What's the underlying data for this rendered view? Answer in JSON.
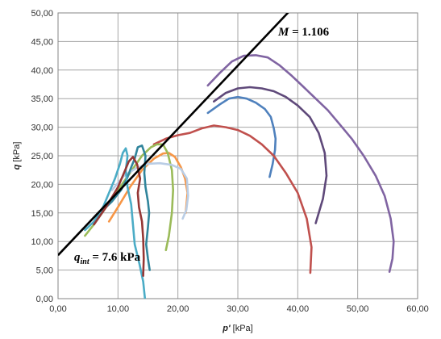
{
  "chart_data": {
    "type": "line",
    "xlabel_main": "p'",
    "xlabel_unit": " [kPa]",
    "ylabel_main": "q",
    "ylabel_unit": " [kPa]",
    "xlim": [
      0,
      60
    ],
    "ylim": [
      0,
      50
    ],
    "x_ticks": [
      "0,00",
      "10,00",
      "20,00",
      "30,00",
      "40,00",
      "50,00",
      "60,00"
    ],
    "y_ticks": [
      "0,00",
      "5,00",
      "10,00",
      "15,00",
      "20,00",
      "25,00",
      "30,00",
      "35,00",
      "40,00",
      "45,00",
      "50,00"
    ],
    "grid": true,
    "annotations": {
      "m_prefix": "M",
      "m_value": " = 1.106",
      "q_prefix": "q",
      "q_sub": "int",
      "q_value": " = 7.6 kPa"
    },
    "reference_line": {
      "intercept": 7.6,
      "slope": 1.106,
      "color": "#000000"
    },
    "series": [
      {
        "color": "#8064a2",
        "points": [
          [
            25,
            37.3
          ],
          [
            27,
            39.5
          ],
          [
            29,
            41.5
          ],
          [
            31,
            42.5
          ],
          [
            33,
            42.6
          ],
          [
            35,
            42.2
          ],
          [
            37,
            40.8
          ],
          [
            39,
            39
          ],
          [
            41,
            37
          ],
          [
            43,
            35
          ],
          [
            45,
            33
          ],
          [
            47,
            30.5
          ],
          [
            49,
            28
          ],
          [
            51,
            25
          ],
          [
            53,
            21.5
          ],
          [
            54.5,
            18
          ],
          [
            55.5,
            14
          ],
          [
            56,
            10
          ],
          [
            55.8,
            7
          ],
          [
            55.3,
            4.7
          ]
        ]
      },
      {
        "color": "#5f497a",
        "points": [
          [
            26,
            34.5
          ],
          [
            28,
            36
          ],
          [
            30,
            36.8
          ],
          [
            32,
            37
          ],
          [
            34,
            36.8
          ],
          [
            36,
            36.3
          ],
          [
            38,
            35.3
          ],
          [
            40,
            33.8
          ],
          [
            42,
            31.8
          ],
          [
            43.5,
            29
          ],
          [
            44.5,
            25.5
          ],
          [
            44.8,
            21.5
          ],
          [
            44.2,
            17.5
          ],
          [
            43,
            13.2
          ]
        ]
      },
      {
        "color": "#4f81bd",
        "points": [
          [
            25,
            32.5
          ],
          [
            27,
            34
          ],
          [
            28.5,
            35
          ],
          [
            30,
            35.3
          ],
          [
            31.5,
            35
          ],
          [
            33,
            34.3
          ],
          [
            34.5,
            33.2
          ],
          [
            35.5,
            31.8
          ],
          [
            36,
            29.8
          ],
          [
            36.3,
            28
          ],
          [
            36.2,
            26
          ],
          [
            35.8,
            23.5
          ],
          [
            35.3,
            21.3
          ]
        ]
      },
      {
        "color": "#c0504d",
        "points": [
          [
            16,
            27
          ],
          [
            18,
            28
          ],
          [
            20,
            28.6
          ],
          [
            22,
            29
          ],
          [
            24,
            29.8
          ],
          [
            26,
            30.3
          ],
          [
            28,
            30
          ],
          [
            30,
            29.5
          ],
          [
            32,
            28.5
          ],
          [
            34,
            27
          ],
          [
            36,
            25
          ],
          [
            38,
            22
          ],
          [
            40,
            18.5
          ],
          [
            41.5,
            14
          ],
          [
            42.3,
            9
          ],
          [
            42.1,
            4.5
          ]
        ]
      },
      {
        "color": "#f79646",
        "points": [
          [
            8.5,
            13.5
          ],
          [
            10,
            16
          ],
          [
            12,
            19.5
          ],
          [
            14,
            22.5
          ],
          [
            16,
            24.5
          ],
          [
            17.5,
            25.4
          ],
          [
            18.5,
            25.5
          ],
          [
            19.5,
            24.8
          ],
          [
            20.5,
            23
          ],
          [
            21.2,
            21
          ],
          [
            21.6,
            18.5
          ],
          [
            21.3,
            15
          ]
        ]
      },
      {
        "color": "#9bbb59",
        "points": [
          [
            4.5,
            11
          ],
          [
            6,
            13
          ],
          [
            8,
            16
          ],
          [
            10,
            19
          ],
          [
            12,
            22
          ],
          [
            14,
            25
          ],
          [
            15.5,
            26.5
          ],
          [
            16.5,
            27
          ],
          [
            17.5,
            27
          ],
          [
            18.3,
            25.5
          ],
          [
            19,
            22.5
          ],
          [
            19.2,
            19
          ],
          [
            19,
            15
          ],
          [
            18.5,
            11
          ],
          [
            18,
            8.5
          ]
        ]
      },
      {
        "color": "#b9cde5",
        "points": [
          [
            9,
            19
          ],
          [
            11,
            21.5
          ],
          [
            13,
            22.8
          ],
          [
            15,
            23.6
          ],
          [
            17,
            23.7
          ],
          [
            19,
            23.4
          ],
          [
            20.5,
            22.7
          ],
          [
            21.5,
            21
          ],
          [
            21.7,
            18
          ],
          [
            21.4,
            15.5
          ],
          [
            20.8,
            14
          ]
        ]
      },
      {
        "color": "#31859c",
        "points": [
          [
            7,
            15
          ],
          [
            9,
            17
          ],
          [
            10.5,
            19
          ],
          [
            11.5,
            21
          ],
          [
            12.2,
            23
          ],
          [
            12.8,
            24.5
          ],
          [
            13.3,
            26.5
          ],
          [
            14,
            26.8
          ],
          [
            14.6,
            25
          ],
          [
            14.4,
            22
          ],
          [
            14.6,
            19.5
          ],
          [
            15,
            17
          ],
          [
            15.2,
            15
          ],
          [
            15,
            12.5
          ],
          [
            14.7,
            9.5
          ],
          [
            15,
            7
          ],
          [
            15.3,
            5
          ]
        ]
      },
      {
        "color": "#4bacc6",
        "points": [
          [
            4.5,
            12
          ],
          [
            6,
            13.5
          ],
          [
            7.5,
            16
          ],
          [
            8.5,
            18.5
          ],
          [
            9.5,
            21
          ],
          [
            10.3,
            23.5
          ],
          [
            10.8,
            25.5
          ],
          [
            11.3,
            26.3
          ],
          [
            11.6,
            25
          ],
          [
            11.3,
            22.5
          ],
          [
            11.6,
            19.5
          ],
          [
            12.2,
            16.5
          ],
          [
            12.5,
            13
          ],
          [
            12.8,
            9.5
          ],
          [
            13.6,
            6
          ],
          [
            14.2,
            3
          ],
          [
            14.5,
            0
          ]
        ]
      },
      {
        "color": "#953735",
        "points": [
          [
            6,
            13
          ],
          [
            8,
            16
          ],
          [
            10,
            19.5
          ],
          [
            11,
            22
          ],
          [
            11.8,
            24
          ],
          [
            12.5,
            24.8
          ],
          [
            13.2,
            23.5
          ],
          [
            13.7,
            21
          ],
          [
            13.3,
            18.5
          ],
          [
            13.5,
            16
          ],
          [
            14,
            13.5
          ],
          [
            14.2,
            10.5
          ],
          [
            14.3,
            7
          ],
          [
            14.2,
            4
          ]
        ]
      }
    ]
  }
}
